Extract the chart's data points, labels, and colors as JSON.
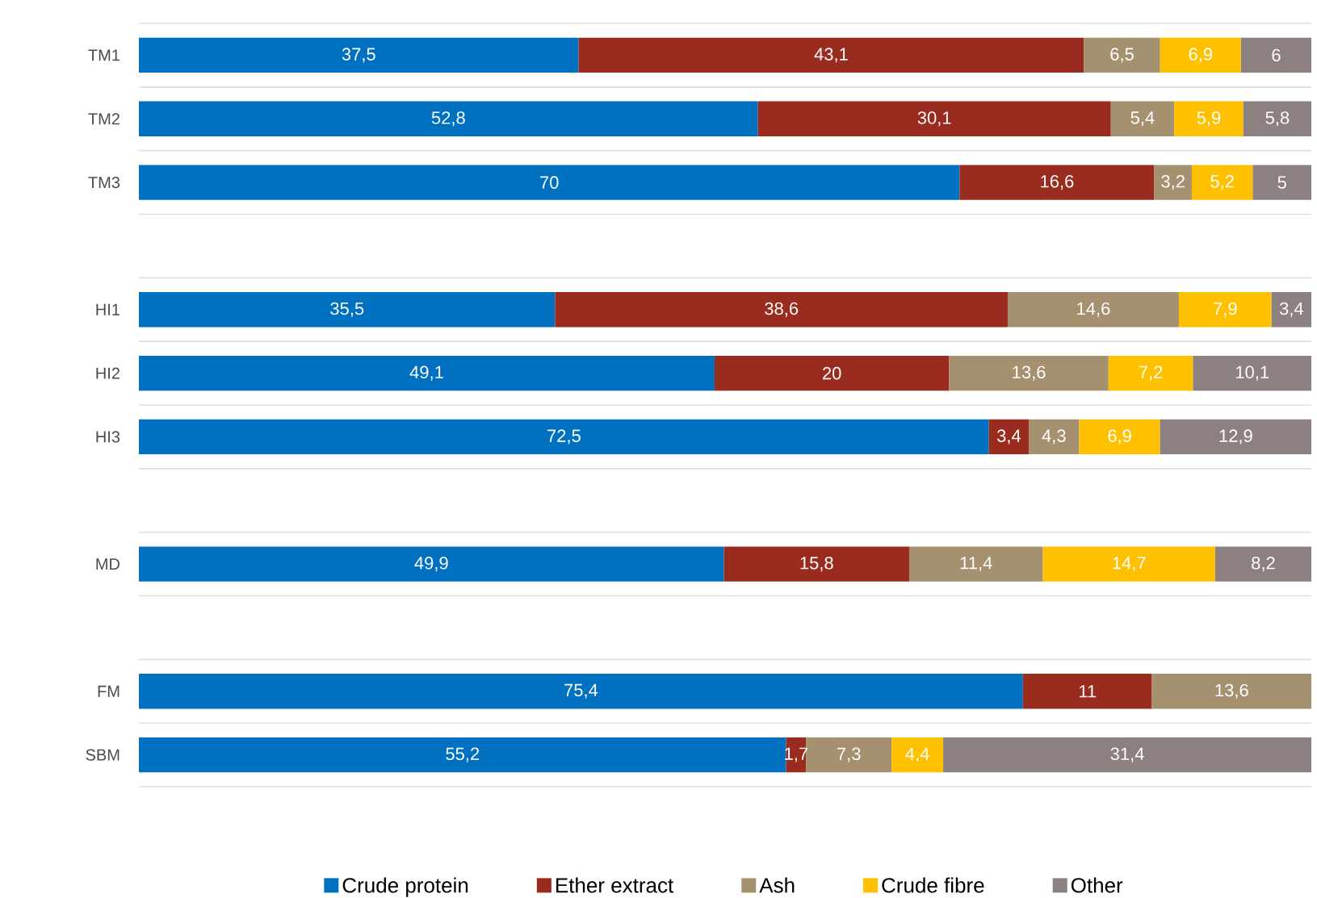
{
  "chart_data": {
    "type": "bar",
    "orientation": "horizontal",
    "stacked": true,
    "categories": [
      "TM1",
      "TM2",
      "TM3",
      null,
      "HI1",
      "HI2",
      "HI3",
      null,
      "MD",
      null,
      "FM",
      "SBM"
    ],
    "xlim": [
      0,
      100
    ],
    "tick_labels": "y",
    "grid": "y",
    "legend": "bottom",
    "series": [
      {
        "name": "Crude protein",
        "color": "#0070c0",
        "values": [
          37.5,
          52.8,
          70,
          null,
          35.5,
          49.1,
          72.5,
          null,
          49.9,
          null,
          75.4,
          55.2
        ],
        "value_labels": [
          "37,5",
          "52,8",
          "70",
          null,
          "35,5",
          "49,1",
          "72,5",
          null,
          "49,9",
          null,
          "75,4",
          "55,2"
        ]
      },
      {
        "name": "Ether extract",
        "color": "#9a2b1f",
        "values": [
          43.1,
          30.1,
          16.6,
          null,
          38.6,
          20,
          3.4,
          null,
          15.8,
          null,
          11,
          1.7
        ],
        "value_labels": [
          "43,1",
          "30,1",
          "16,6",
          null,
          "38,6",
          "20",
          "3,4",
          null,
          "15,8",
          null,
          "11",
          "1,7"
        ]
      },
      {
        "name": "Ash",
        "color": "#a5916f",
        "values": [
          6.5,
          5.4,
          3.2,
          null,
          14.6,
          13.6,
          4.3,
          null,
          11.4,
          null,
          13.6,
          7.3
        ],
        "value_labels": [
          "6,5",
          "5,4",
          "3,2",
          null,
          "14,6",
          "13,6",
          "4,3",
          null,
          "11,4",
          null,
          "13,6",
          "7,3"
        ]
      },
      {
        "name": "Crude fibre",
        "color": "#ffc000",
        "values": [
          6.9,
          5.9,
          5.2,
          null,
          7.9,
          7.2,
          6.9,
          null,
          14.7,
          null,
          null,
          4.4
        ],
        "value_labels": [
          "6,9",
          "5,9",
          "5,2",
          null,
          "7,9",
          "7,2",
          "6,9",
          null,
          "14,7",
          null,
          null,
          "4,4"
        ]
      },
      {
        "name": "Other",
        "color": "#8d8080",
        "values": [
          6,
          5.8,
          5,
          null,
          3.4,
          10.1,
          12.9,
          null,
          8.2,
          null,
          null,
          31.4
        ],
        "value_labels": [
          "6",
          "5,8",
          "5",
          null,
          "3,4",
          "10,1",
          "12,9",
          null,
          "8,2",
          null,
          null,
          "31,4"
        ]
      }
    ]
  }
}
